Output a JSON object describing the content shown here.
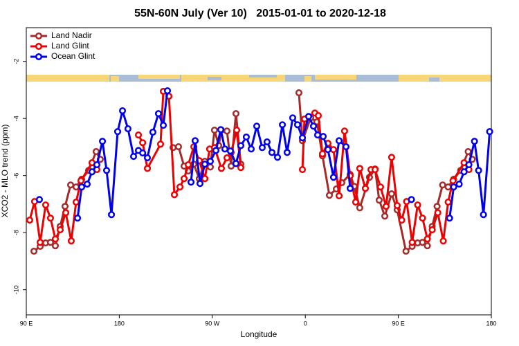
{
  "chart_data": {
    "type": "line",
    "title": "55N-60N July (Ver 10)   2015-01-01 to 2020-12-18",
    "xlabel": "Longitude",
    "ylabel": "XCO2 - MLO trend (ppm)",
    "xlim": [
      90,
      540
    ],
    "xticks": [
      {
        "value": 90,
        "label": "90 E"
      },
      {
        "value": 180,
        "label": "180"
      },
      {
        "value": 270,
        "label": "90 W"
      },
      {
        "value": 360,
        "label": "0"
      },
      {
        "value": 450,
        "label": "90 E"
      },
      {
        "value": 540,
        "label": "180"
      }
    ],
    "ylim": [
      -10.88,
      -0.82
    ],
    "yticks": [
      -10,
      -8,
      -6,
      -4,
      -2
    ],
    "legend": "top-left",
    "series": [
      {
        "name": "Land Nadir",
        "color": "#a52a2a",
        "x": [
          97.4,
          103.4,
          108.7,
          113.4,
          118.1,
          122.8,
          127.5,
          132.9,
          138.2,
          143.6,
          150.3,
          157.6,
          161.6,
          null,
          232.0,
          237.3,
          242.7,
          246.7,
          252.1,
          257.4,
          262.8,
          268.1,
          272.1,
          276.2,
          278.8,
          284.2,
          288.2,
          292.9,
          297.6,
          null,
          353.8,
          357.2,
          365.2,
          371.2,
          376.6,
          383.3,
          390.0,
          395.3,
          403.4,
          407.4,
          412.7,
          422.1,
          427.5,
          431.5,
          436.9,
          443.5,
          448.9,
          457.4,
          463.4,
          468.7,
          473.4,
          478.1,
          482.8,
          487.5,
          492.9,
          498.2,
          503.6,
          510.3,
          517.6,
          521.6
        ],
        "values": [
          -8.65,
          -8.48,
          -8.36,
          -8.34,
          -8.46,
          -7.78,
          -7.08,
          -6.33,
          -6.4,
          -6.13,
          -5.82,
          -5.16,
          -5.43,
          null,
          -5.02,
          -4.99,
          -5.67,
          -5.84,
          -5.6,
          -6.11,
          -5.5,
          -5.7,
          -4.41,
          -4.95,
          -4.41,
          -4.44,
          -5.67,
          -3.83,
          -5.6,
          null,
          -3.1,
          -4.78,
          -3.98,
          -4.12,
          -5.31,
          -6.69,
          -6.47,
          -6.25,
          -5.96,
          -6.38,
          -7.13,
          -6.06,
          -5.77,
          -6.86,
          -7.42,
          -6.64,
          -7.2,
          -8.65,
          -8.48,
          -8.36,
          -8.34,
          -8.46,
          -7.78,
          -7.08,
          -6.33,
          -6.4,
          -6.13,
          -5.82,
          -5.16,
          -5.43
        ]
      },
      {
        "name": "Land Glint",
        "color": "#ee0000",
        "x": [
          93.3,
          98.0,
          103.4,
          108.7,
          113.4,
          118.1,
          122.8,
          128.2,
          133.5,
          138.2,
          142.9,
          153.6,
          158.3,
          null,
          198.5,
          202.6,
          207.2,
          219.9,
          222.6,
          228.0,
          233.3,
          238.7,
          242.7,
          246.7,
          252.1,
          257.4,
          262.8,
          267.4,
          272.1,
          278.8,
          284.2,
          288.2,
          293.6,
          297.6,
          null,
          357.2,
          359.2,
          369.2,
          372.6,
          376.6,
          381.9,
          387.3,
          392.7,
          398.0,
          403.4,
          408.7,
          412.7,
          418.1,
          423.5,
          427.5,
          432.8,
          438.2,
          443.5,
          448.9,
          453.3,
          458.0,
          463.4,
          468.7,
          473.4,
          478.1,
          482.8,
          488.2,
          493.5,
          498.2,
          502.9,
          513.6,
          518.3
        ],
        "values": [
          -7.56,
          -6.91,
          -8.34,
          -7.03,
          -7.49,
          -8.22,
          -7.9,
          -7.3,
          -8.29,
          -6.93,
          -6.18,
          -5.55,
          -5.79,
          null,
          -4.58,
          -4.85,
          -5.75,
          -4.9,
          -3.05,
          -3.22,
          -6.67,
          -6.4,
          -6.11,
          -5.62,
          -4.99,
          -5.48,
          -6.11,
          -5.07,
          -5.02,
          -5.75,
          -5.38,
          -5.19,
          -4.41,
          -5.72,
          null,
          -5.79,
          -4.02,
          -3.81,
          -3.9,
          -5.24,
          -4.87,
          -5.09,
          -6.71,
          -4.44,
          -6.01,
          -6.93,
          -5.75,
          -6.45,
          -5.79,
          -5.79,
          -6.4,
          -7.08,
          -5.36,
          -7.05,
          -7.56,
          -6.91,
          -8.34,
          -7.03,
          -7.49,
          -8.22,
          -7.9,
          -7.3,
          -8.29,
          -6.93,
          -6.18,
          -5.55,
          -5.79
        ]
      },
      {
        "name": "Ocean Glint",
        "color": "#0000ee",
        "x": [
          102.7,
          null,
          139.6,
          143.6,
          148.9,
          153.6,
          158.3,
          163.7,
          167.7,
          172.4,
          178.4,
          183.1,
          188.4,
          193.8,
          198.5,
          202.6,
          207.2,
          212.5,
          217.9,
          222.6,
          226.6,
          null,
          249.4,
          253.4,
          258.1,
          262.8,
          268.1,
          273.5,
          278.2,
          282.2,
          287.5,
          292.9,
          297.6,
          302.9,
          307.6,
          313.0,
          318.3,
          323.0,
          327.7,
          333.1,
          337.8,
          342.4,
          347.8,
          352.5,
          357.2,
          363.2,
          367.9,
          371.9,
          377.3,
          381.9,
          387.3,
          392.7,
          399.4,
          403.4,
          null,
          462.7,
          null,
          499.6,
          503.6,
          508.9,
          513.6,
          518.3,
          523.7,
          527.7,
          532.4,
          538.4
        ],
        "values": [
          -6.84,
          null,
          -7.49,
          -6.4,
          -6.3,
          -5.87,
          -5.62,
          -4.8,
          -5.82,
          -7.37,
          -4.46,
          -3.73,
          -4.36,
          -5.33,
          -5.12,
          -5.21,
          -5.38,
          -4.48,
          -3.83,
          -4.24,
          -3.03,
          null,
          -6.23,
          -4.78,
          -6.28,
          -5.6,
          -5.5,
          -5.12,
          -4.39,
          -5.07,
          -5.14,
          -5.58,
          -4.95,
          -4.65,
          -5.07,
          -4.27,
          -5.02,
          -4.82,
          -5.19,
          -5.36,
          -4.22,
          -5.19,
          -3.98,
          -4.22,
          -4.68,
          -3.93,
          -4.27,
          -4.58,
          -4.63,
          -5.09,
          -6.06,
          -4.78,
          -4.99,
          -6.45,
          null,
          -6.84,
          null,
          -7.49,
          -6.4,
          -6.3,
          -5.87,
          -5.62,
          -4.8,
          -5.82,
          -7.37,
          -4.46
        ]
      }
    ]
  }
}
